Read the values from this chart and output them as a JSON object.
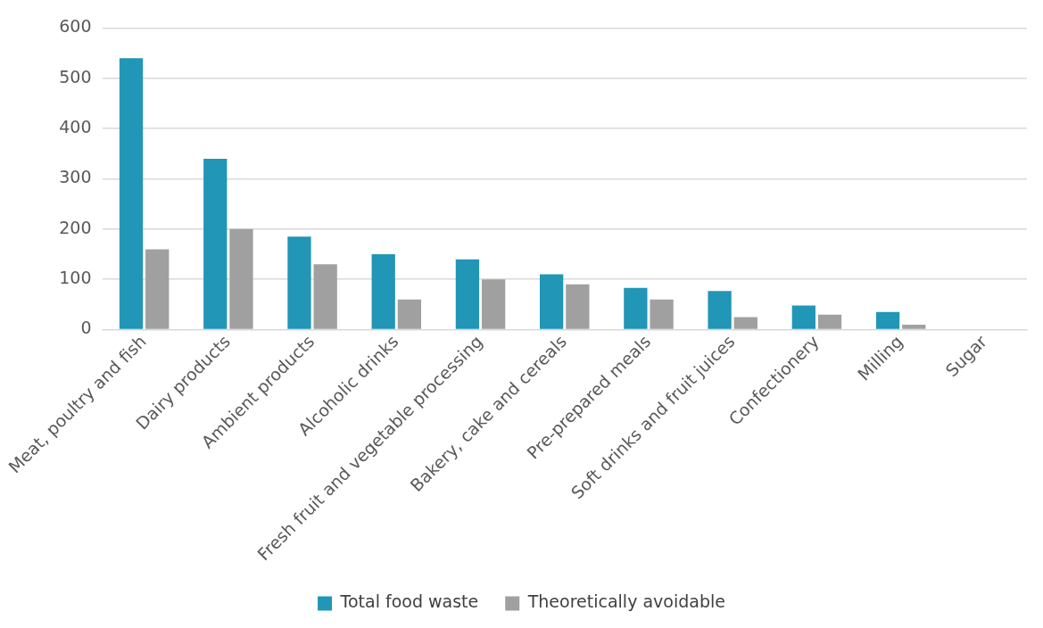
{
  "chart_data": {
    "type": "bar",
    "categories": [
      "Meat, poultry and fish",
      "Dairy products",
      "Ambient products",
      "Alcoholic drinks",
      "Fresh fruit and vegetable processing",
      "Bakery, cake and cereals",
      "Pre-prepared meals",
      "Soft drinks and fruit juices",
      "Confectionery",
      "Milling",
      "Sugar"
    ],
    "series": [
      {
        "name": "Total food waste",
        "color": "#2196b6",
        "values": [
          540,
          340,
          185,
          150,
          140,
          110,
          83,
          77,
          48,
          35,
          null
        ]
      },
      {
        "name": "Theoretically avoidable",
        "color": "#a0a0a0",
        "values": [
          160,
          200,
          130,
          60,
          100,
          90,
          60,
          25,
          30,
          10,
          null
        ]
      }
    ],
    "ylim": [
      0,
      600
    ],
    "yticks": [
      0,
      100,
      200,
      300,
      400,
      500,
      600
    ],
    "grid": "y",
    "legend": "bottom"
  }
}
